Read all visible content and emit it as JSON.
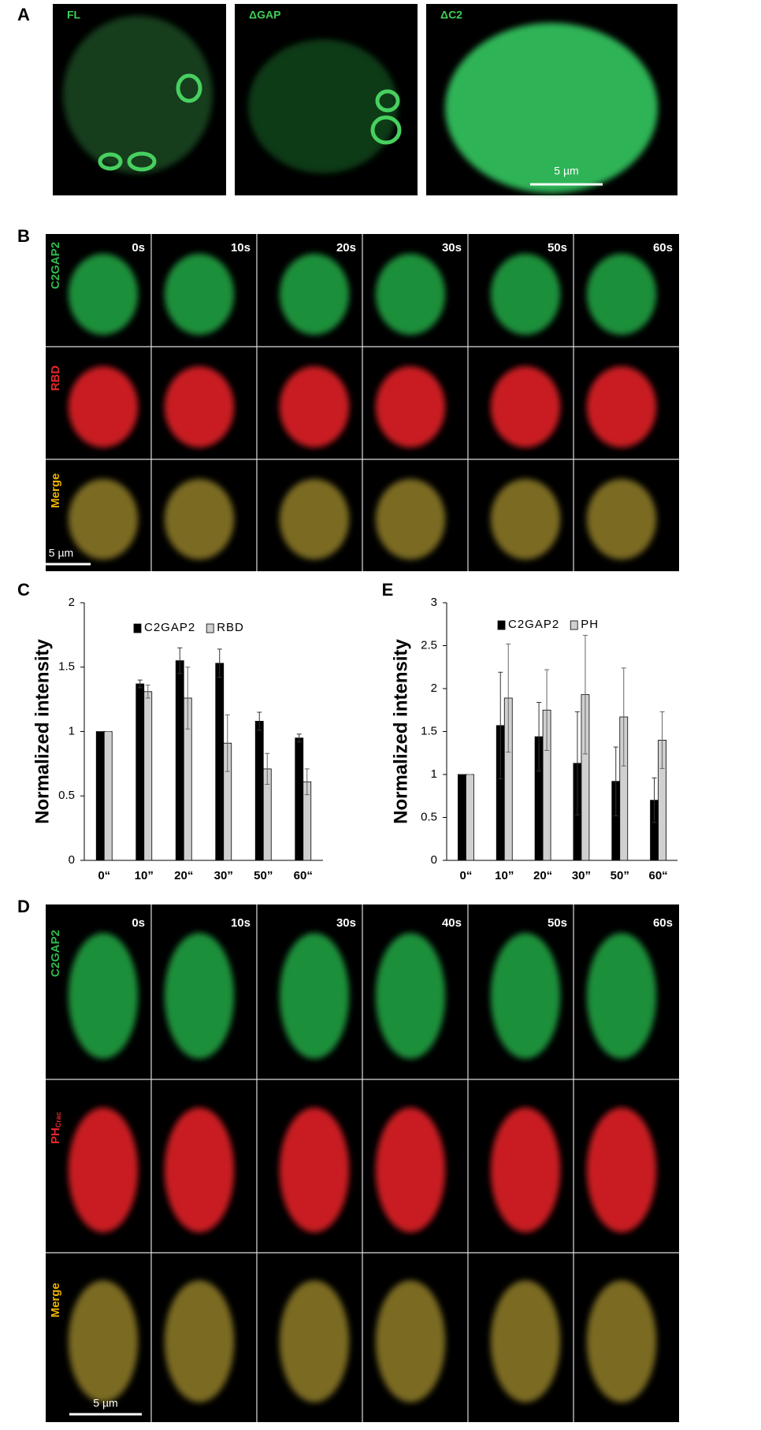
{
  "panel_a": {
    "label": "A",
    "images": [
      {
        "label": "FL"
      },
      {
        "label": "ΔGAP"
      },
      {
        "label": "ΔC2"
      }
    ],
    "scale_bar": "5 µm"
  },
  "panel_b": {
    "label": "B",
    "times": [
      "0s",
      "10s",
      "20s",
      "30s",
      "50s",
      "60s"
    ],
    "rows": [
      "C2GAP2",
      "RBD",
      "Merge"
    ],
    "scale_bar": "5 µm"
  },
  "chart_data": [
    {
      "type": "bar",
      "panel_label": "C",
      "y_label": "Normalized intensity",
      "categories": [
        "0“",
        "10”",
        "20“",
        "30”",
        "50”",
        "60“"
      ],
      "series": [
        {
          "name": "C2GAP2",
          "color": "#000000",
          "values": [
            1,
            1.37,
            1.55,
            1.53,
            1.08,
            0.95
          ],
          "errors": [
            0,
            0.03,
            0.1,
            0.11,
            0.07,
            0.03
          ]
        },
        {
          "name": "RBD",
          "color": "#d0d0d0",
          "values": [
            1,
            1.31,
            1.26,
            0.91,
            0.71,
            0.61
          ],
          "errors": [
            0,
            0.05,
            0.24,
            0.22,
            0.12,
            0.1
          ]
        }
      ],
      "ylim": [
        0,
        2
      ],
      "yticks": [
        0,
        0.5,
        1,
        1.5,
        2
      ]
    },
    {
      "type": "bar",
      "panel_label": "E",
      "y_label": "Normalized intensity",
      "categories": [
        "0“",
        "10”",
        "20“",
        "30”",
        "50”",
        "60“"
      ],
      "series": [
        {
          "name": "C2GAP2",
          "color": "#000000",
          "values": [
            1,
            1.57,
            1.44,
            1.13,
            0.92,
            0.7
          ],
          "errors": [
            0,
            0.62,
            0.4,
            0.6,
            0.4,
            0.26
          ]
        },
        {
          "name": "PH",
          "color": "#d0d0d0",
          "values": [
            1,
            1.89,
            1.75,
            1.93,
            1.67,
            1.4
          ],
          "errors": [
            0,
            0.63,
            0.47,
            0.69,
            0.57,
            0.33
          ]
        }
      ],
      "ylim": [
        0,
        3
      ],
      "yticks": [
        0,
        0.5,
        1,
        1.5,
        2,
        2.5,
        3
      ]
    }
  ],
  "panel_d": {
    "label": "D",
    "times": [
      "0s",
      "10s",
      "30s",
      "40s",
      "50s",
      "60s"
    ],
    "rows": [
      {
        "text": "C2GAP2"
      },
      {
        "text": "PH",
        "sub": "Crac"
      },
      {
        "text": "Merge"
      }
    ],
    "scale_bar": "5 µm"
  }
}
